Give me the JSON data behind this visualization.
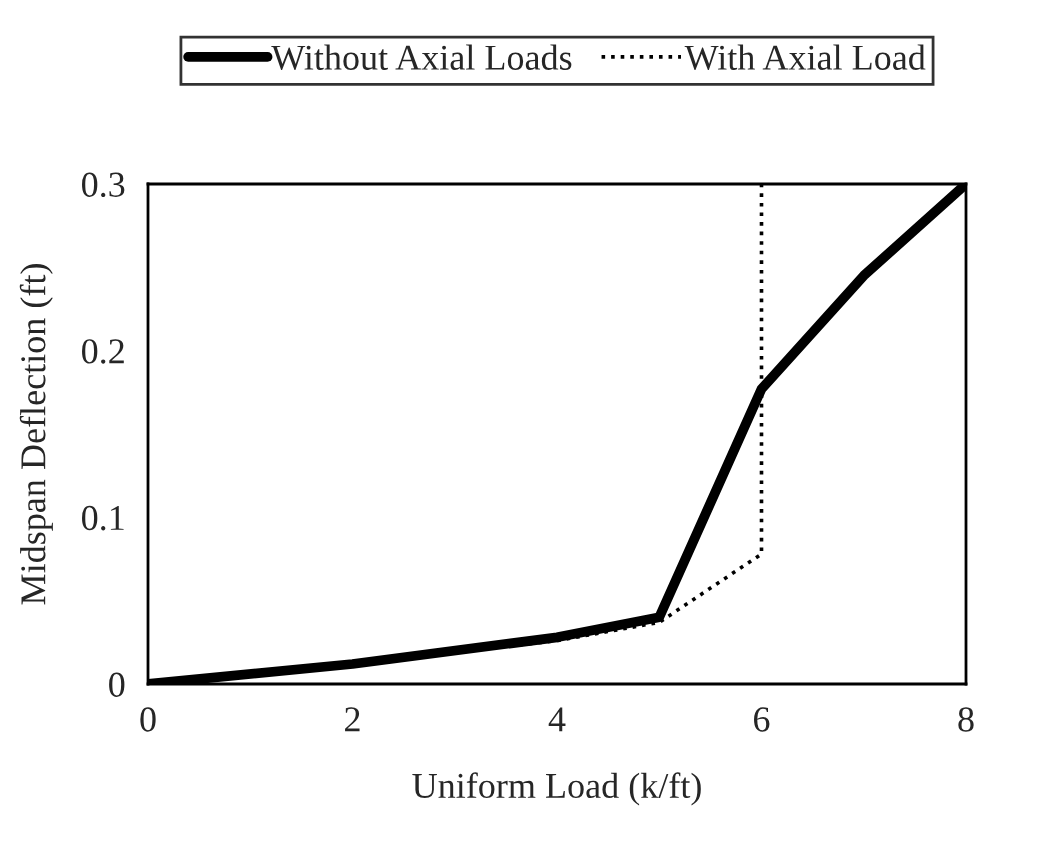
{
  "chart_data": {
    "type": "line",
    "xlabel": "Uniform Load (k/ft)",
    "ylabel": "Midspan Deflection (ft)",
    "series": [
      {
        "name": "Without Axial Loads",
        "color": "#000000",
        "line_style": "solid",
        "x": [
          0,
          2,
          4,
          5,
          6,
          7,
          8
        ],
        "values": [
          0,
          0.012,
          0.028,
          0.04,
          0.177,
          0.245,
          0.3
        ]
      },
      {
        "name": "With Axial Load",
        "color": "#000000",
        "line_style": "dotted",
        "x": [
          0,
          2,
          4,
          5,
          6,
          6
        ],
        "values": [
          0,
          0.012,
          0.026,
          0.037,
          0.078,
          0.3
        ]
      }
    ],
    "xlim": [
      0,
      8
    ],
    "xticks": [
      0,
      2,
      4,
      6,
      8
    ],
    "ylim": [
      0,
      0.3
    ],
    "yticks": [
      0,
      0.1,
      0.2,
      0.3
    ],
    "grid": false,
    "legend": "top",
    "marker": "none"
  }
}
